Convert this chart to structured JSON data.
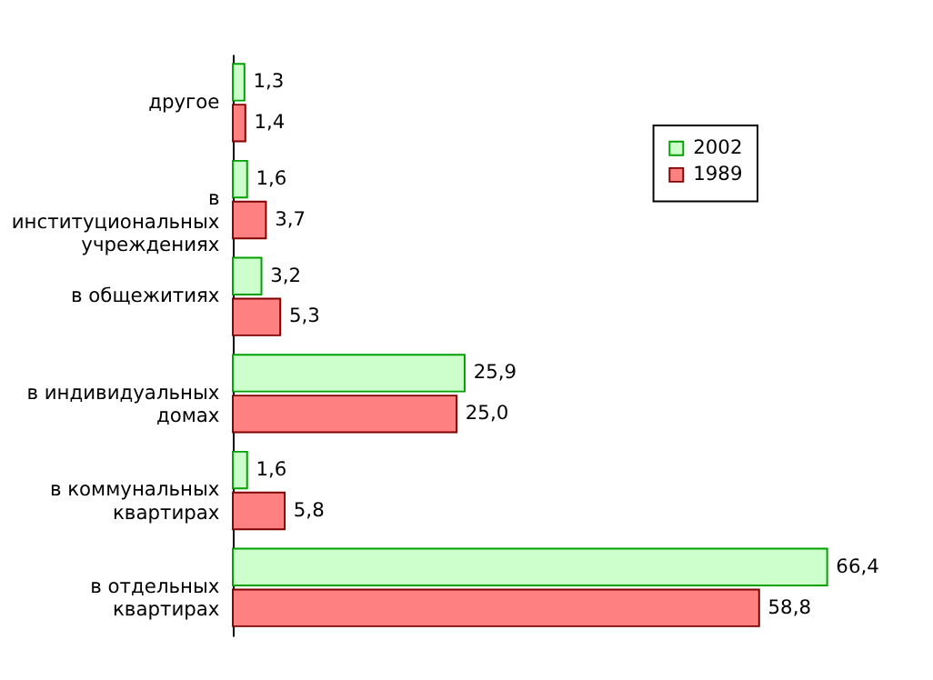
{
  "chart_data": {
    "type": "bar",
    "orientation": "horizontal",
    "categories": [
      "другое",
      "в\nинституциональных\nучреждениях",
      "в общежитиях",
      "в индивидуальных\nдомах",
      "в коммунальных\nквартирах",
      "в отдельных\nквартирах"
    ],
    "series": [
      {
        "name": "2002",
        "color": "#ccffcc",
        "values": [
          1.3,
          1.6,
          3.2,
          25.9,
          1.6,
          66.4
        ],
        "value_labels": [
          "1,3",
          "1,6",
          "3,2",
          "25,9",
          "1,6",
          "66,4"
        ]
      },
      {
        "name": "1989",
        "color": "#ff8080",
        "values": [
          1.4,
          3.7,
          5.3,
          25.0,
          5.8,
          58.8
        ],
        "value_labels": [
          "1,4",
          "3,7",
          "5,3",
          "25,0",
          "5,8",
          "58,8"
        ]
      }
    ],
    "legend": "top right",
    "grid": false
  }
}
